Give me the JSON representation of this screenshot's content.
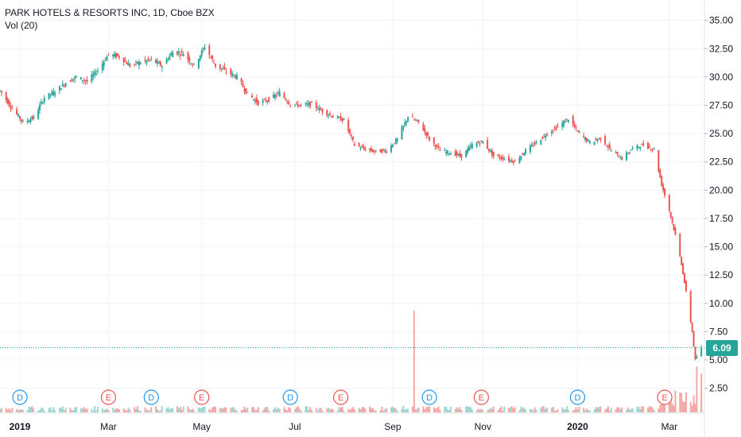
{
  "header": {
    "title": "PARK HOTELS & RESORTS INC, 1D, Cboe BZX",
    "indicator": "Vol (20)"
  },
  "last_price": {
    "label": "6.09",
    "value": 6.09,
    "color": "#26a69a"
  },
  "colors": {
    "up": "#26a69a",
    "down": "#ef5350",
    "up_volume": "#9fd6d0",
    "down_volume": "#f4a9a7",
    "grid": "#f0f3fa",
    "axis_text": "#131722",
    "dividend_marker": "#2196f3",
    "earnings_marker": "#ef5350"
  },
  "chart_data": {
    "type": "candlestick",
    "title": "PARK HOTELS & RESORTS INC, 1D, Cboe BZX",
    "x_ticks": [
      {
        "label": "2019",
        "date": "2019-01-02"
      },
      {
        "label": "Mar",
        "date": "2019-03-01"
      },
      {
        "label": "May",
        "date": "2019-05-01"
      },
      {
        "label": "Jul",
        "date": "2019-07-01"
      },
      {
        "label": "Sep",
        "date": "2019-09-03"
      },
      {
        "label": "Nov",
        "date": "2019-11-01"
      },
      {
        "label": "2020",
        "date": "2020-01-02"
      },
      {
        "label": "Mar",
        "date": "2020-03-02"
      }
    ],
    "y_ticks": [
      "2.50",
      "5.00",
      "7.50",
      "10.00",
      "12.50",
      "15.00",
      "17.50",
      "20.00",
      "22.50",
      "25.00",
      "27.50",
      "30.00",
      "32.50",
      "35.00"
    ],
    "ylim": [
      0.3,
      36.8
    ],
    "x_range": [
      "2018-12-20",
      "2020-03-25"
    ],
    "grid": true,
    "price_path": [
      [
        "2018-12-20",
        28.8
      ],
      [
        "2018-12-28",
        27.2
      ],
      [
        "2019-01-04",
        26.0
      ],
      [
        "2019-01-11",
        26.4
      ],
      [
        "2019-01-18",
        28.2
      ],
      [
        "2019-01-25",
        28.7
      ],
      [
        "2019-02-01",
        29.5
      ],
      [
        "2019-02-08",
        30.0
      ],
      [
        "2019-02-15",
        29.6
      ],
      [
        "2019-02-22",
        30.6
      ],
      [
        "2019-03-01",
        32.0
      ],
      [
        "2019-03-08",
        31.8
      ],
      [
        "2019-03-15",
        31.0
      ],
      [
        "2019-03-22",
        31.3
      ],
      [
        "2019-03-29",
        31.5
      ],
      [
        "2019-04-05",
        31.0
      ],
      [
        "2019-04-12",
        32.2
      ],
      [
        "2019-04-19",
        32.1
      ],
      [
        "2019-04-26",
        31.0
      ],
      [
        "2019-05-03",
        32.7
      ],
      [
        "2019-05-10",
        31.0
      ],
      [
        "2019-05-17",
        30.5
      ],
      [
        "2019-05-24",
        30.0
      ],
      [
        "2019-05-31",
        28.5
      ],
      [
        "2019-06-07",
        27.7
      ],
      [
        "2019-06-14",
        28.0
      ],
      [
        "2019-06-21",
        28.6
      ],
      [
        "2019-06-28",
        27.6
      ],
      [
        "2019-07-05",
        27.5
      ],
      [
        "2019-07-12",
        27.6
      ],
      [
        "2019-07-19",
        27.0
      ],
      [
        "2019-07-26",
        26.5
      ],
      [
        "2019-08-02",
        26.2
      ],
      [
        "2019-08-09",
        24.0
      ],
      [
        "2019-08-16",
        23.6
      ],
      [
        "2019-08-23",
        23.4
      ],
      [
        "2019-08-30",
        23.5
      ],
      [
        "2019-09-06",
        24.5
      ],
      [
        "2019-09-13",
        26.5
      ],
      [
        "2019-09-20",
        26.0
      ],
      [
        "2019-09-27",
        24.5
      ],
      [
        "2019-10-04",
        23.5
      ],
      [
        "2019-10-11",
        23.3
      ],
      [
        "2019-10-18",
        23.0
      ],
      [
        "2019-10-25",
        24.0
      ],
      [
        "2019-11-01",
        24.3
      ],
      [
        "2019-11-08",
        23.0
      ],
      [
        "2019-11-15",
        22.8
      ],
      [
        "2019-11-22",
        22.5
      ],
      [
        "2019-11-29",
        23.5
      ],
      [
        "2019-12-06",
        24.2
      ],
      [
        "2019-12-13",
        25.0
      ],
      [
        "2019-12-20",
        25.6
      ],
      [
        "2019-12-27",
        26.3
      ],
      [
        "2020-01-03",
        25.0
      ],
      [
        "2020-01-10",
        24.2
      ],
      [
        "2020-01-17",
        24.6
      ],
      [
        "2020-01-24",
        23.5
      ],
      [
        "2020-01-31",
        22.8
      ],
      [
        "2020-02-07",
        23.7
      ],
      [
        "2020-02-14",
        24.0
      ],
      [
        "2020-02-21",
        23.6
      ],
      [
        "2020-02-26",
        20.5
      ],
      [
        "2020-03-02",
        18.2
      ],
      [
        "2020-03-06",
        16.0
      ],
      [
        "2020-03-10",
        13.5
      ],
      [
        "2020-03-13",
        11.0
      ],
      [
        "2020-03-17",
        7.5
      ],
      [
        "2020-03-19",
        5.0
      ],
      [
        "2020-03-23",
        6.09
      ]
    ],
    "volume_spikes": [
      {
        "date": "2019-09-17",
        "value": 1.0
      },
      {
        "date": "2020-03-20",
        "value": 0.45
      },
      {
        "date": "2020-03-23",
        "value": 0.38
      }
    ],
    "events": [
      {
        "type": "D",
        "date": "2019-01-02"
      },
      {
        "type": "E",
        "date": "2019-03-01"
      },
      {
        "type": "D",
        "date": "2019-03-29"
      },
      {
        "type": "E",
        "date": "2019-05-01"
      },
      {
        "type": "D",
        "date": "2019-06-28"
      },
      {
        "type": "E",
        "date": "2019-07-31"
      },
      {
        "type": "D",
        "date": "2019-09-27"
      },
      {
        "type": "E",
        "date": "2019-10-31"
      },
      {
        "type": "D",
        "date": "2020-01-02"
      },
      {
        "type": "E",
        "date": "2020-02-28"
      }
    ]
  }
}
